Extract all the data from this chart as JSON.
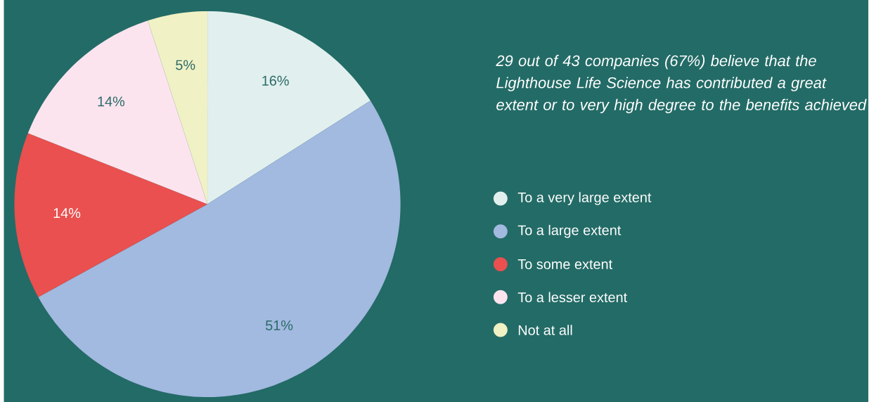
{
  "chart_data": {
    "type": "pie",
    "title": "29 out of 43 companies (67%) believe that the Lighthouse Life Science has contributed a great extent or to very high degree to the benefits achieved",
    "categories": [
      "To a very large extent",
      "To a large extent",
      "To some extent",
      "To a lesser extent",
      "Not at all"
    ],
    "values": [
      16,
      51,
      14,
      14,
      5
    ],
    "value_labels": [
      "16%",
      "51%",
      "14%",
      "14%",
      "5%"
    ],
    "colors": [
      "#e1f0ee",
      "#a2b9e0",
      "#e9504f",
      "#fce4ef",
      "#f0f1c5"
    ],
    "legend": "right"
  }
}
